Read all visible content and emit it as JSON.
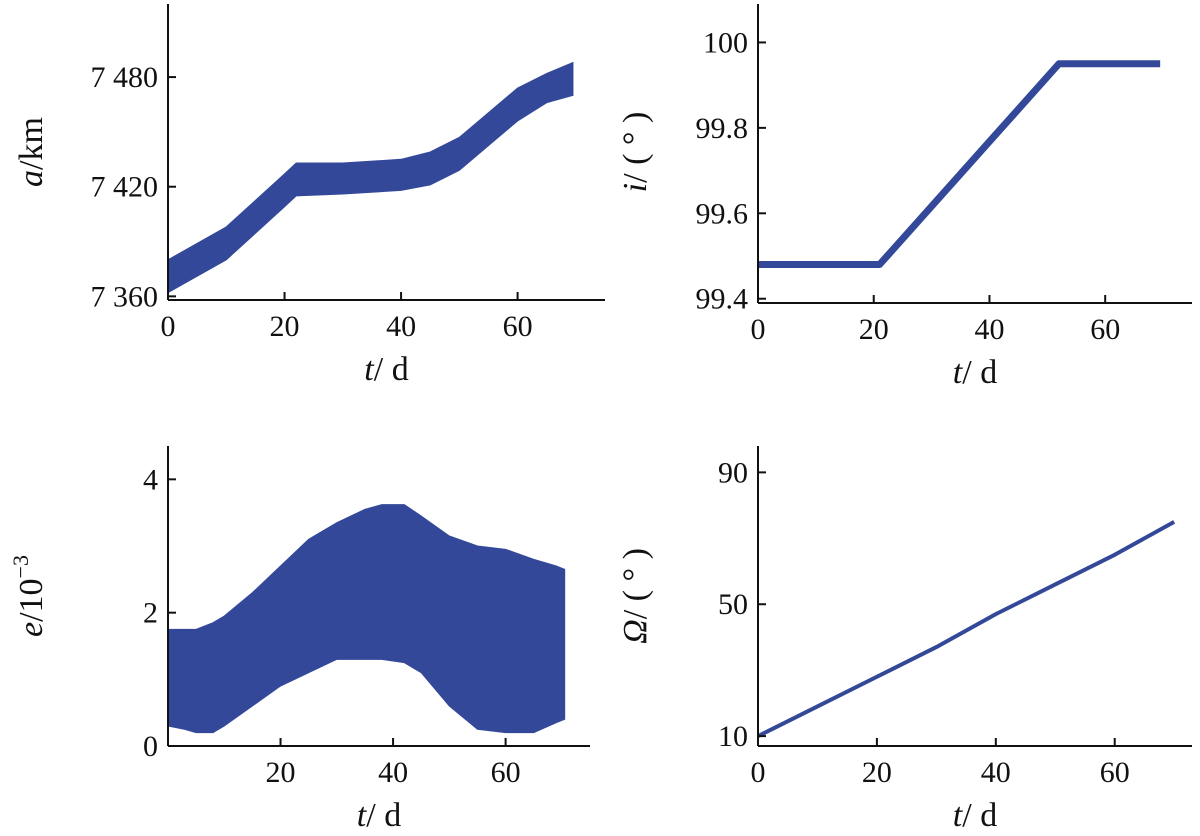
{
  "colors": {
    "series": "#34489a",
    "axis": "#111111",
    "background": "#ffffff"
  },
  "chart_data": [
    {
      "id": "a",
      "type": "area",
      "xlabel_sym": "t",
      "xlabel_unit": "/ d",
      "ylabel_sym": "a",
      "ylabel_unit": "/km",
      "xlim": [
        0,
        75
      ],
      "ylim": [
        7358,
        7520
      ],
      "xticks": [
        0,
        20,
        40,
        60
      ],
      "xtick_labels": [
        "0",
        "20",
        "40",
        "60"
      ],
      "yticks": [
        7360,
        7420,
        7480
      ],
      "ytick_labels": [
        "7 360",
        "7 420",
        "7 480"
      ],
      "series": [
        {
          "x": [
            0,
            10,
            20,
            22,
            30,
            40,
            45,
            50,
            60,
            65,
            69.5
          ],
          "lower": [
            7362,
            7380,
            7409,
            7415,
            7416,
            7418,
            7421,
            7429,
            7456,
            7466,
            7470
          ],
          "upper": [
            7380,
            7398,
            7427,
            7433,
            7433,
            7435,
            7439,
            7447,
            7474,
            7482,
            7488
          ]
        }
      ]
    },
    {
      "id": "i",
      "type": "line",
      "xlabel_sym": "t",
      "xlabel_unit": "/ d",
      "ylabel_sym": "i",
      "ylabel_unit": "/ ( ° )",
      "xlim": [
        0,
        75
      ],
      "ylim": [
        99.39,
        100.09
      ],
      "xticks": [
        0,
        20,
        40,
        60
      ],
      "xtick_labels": [
        "0",
        "20",
        "40",
        "60"
      ],
      "yticks": [
        99.4,
        99.6,
        99.8,
        100
      ],
      "ytick_labels": [
        "99.4",
        "99.6",
        "99.8",
        "100"
      ],
      "series": [
        {
          "x": [
            0,
            21,
            52,
            69.5
          ],
          "y": [
            99.48,
            99.48,
            99.95,
            99.95
          ]
        }
      ]
    },
    {
      "id": "e",
      "type": "area",
      "xlabel_sym": "t",
      "xlabel_unit": "/ d",
      "ylabel_sym": "e",
      "ylabel_unit": "/10",
      "ylabel_exp": "−3",
      "xlim": [
        0,
        75
      ],
      "ylim": [
        0,
        4.5
      ],
      "xticks": [
        20,
        40,
        60
      ],
      "xtick_labels": [
        "20",
        "40",
        "60"
      ],
      "yticks": [
        0,
        2,
        4
      ],
      "ytick_labels": [
        "0",
        "2",
        "4"
      ],
      "series": [
        {
          "x": [
            0,
            3,
            5,
            8,
            10,
            15,
            20,
            25,
            30,
            35,
            38,
            42,
            45,
            50,
            55,
            60,
            65,
            69,
            70.5
          ],
          "lower": [
            0.3,
            0.25,
            0.2,
            0.2,
            0.3,
            0.6,
            0.9,
            1.1,
            1.3,
            1.3,
            1.3,
            1.25,
            1.1,
            0.6,
            0.25,
            0.2,
            0.2,
            0.35,
            0.4
          ],
          "upper": [
            1.75,
            1.75,
            1.75,
            1.85,
            1.95,
            2.3,
            2.7,
            3.1,
            3.35,
            3.55,
            3.62,
            3.62,
            3.45,
            3.15,
            3.0,
            2.95,
            2.8,
            2.7,
            2.65
          ]
        }
      ]
    },
    {
      "id": "omega",
      "type": "line",
      "xlabel_sym": "t",
      "xlabel_unit": "/ d",
      "ylabel_sym": "Ω",
      "ylabel_unit": "/ ( ° )",
      "xlim": [
        0,
        73
      ],
      "ylim": [
        7,
        98
      ],
      "xticks": [
        0,
        20,
        40,
        60
      ],
      "xtick_labels": [
        "0",
        "20",
        "40",
        "60"
      ],
      "yticks": [
        10,
        50,
        90
      ],
      "ytick_labels": [
        "10",
        "50",
        "90"
      ],
      "series": [
        {
          "x": [
            0,
            10,
            20,
            30,
            40,
            50,
            60,
            70
          ],
          "y": [
            10,
            19,
            28,
            37,
            47,
            56,
            65,
            75
          ]
        }
      ]
    }
  ]
}
